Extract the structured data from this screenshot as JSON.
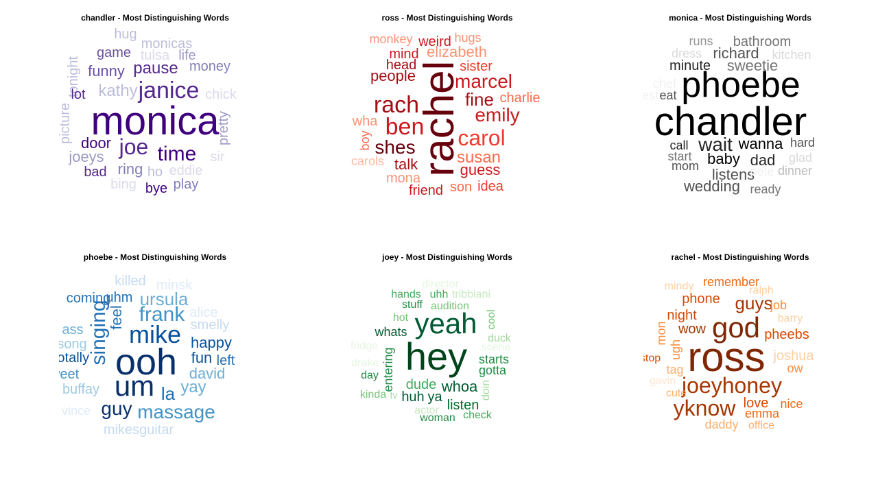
{
  "chart_data": [
    {
      "type": "wordcloud",
      "title": "chandler - Most Distinguishing Words",
      "palette": "purples",
      "words": [
        {
          "text": "hug",
          "size": 20,
          "color": "#bcbddc"
        },
        {
          "text": "monicas",
          "size": 20,
          "color": "#bcbddc"
        },
        {
          "text": "tonight",
          "size": 20,
          "color": "#bcbddc",
          "rot": 1
        },
        {
          "text": "game",
          "size": 20,
          "color": "#6a51a3"
        },
        {
          "text": "tulsa",
          "size": 20,
          "color": "#dadaeb"
        },
        {
          "text": "life",
          "size": 20,
          "color": "#9e9ac8"
        },
        {
          "text": "funny",
          "size": 22,
          "color": "#6a51a3"
        },
        {
          "text": "pause",
          "size": 24,
          "color": "#54278f"
        },
        {
          "text": "money",
          "size": 20,
          "color": "#807dba"
        },
        {
          "text": "lot",
          "size": 20,
          "color": "#54278f"
        },
        {
          "text": "kathy",
          "size": 24,
          "color": "#bcbddc"
        },
        {
          "text": "janice",
          "size": 34,
          "color": "#54278f"
        },
        {
          "text": "chick",
          "size": 20,
          "color": "#dadaeb"
        },
        {
          "text": "monica",
          "size": 58,
          "color": "#3f007d"
        },
        {
          "text": "picture",
          "size": 20,
          "color": "#bcbddc",
          "rot": 1
        },
        {
          "text": "pretty",
          "size": 20,
          "color": "#9e9ac8",
          "rot": 1
        },
        {
          "text": "door",
          "size": 22,
          "color": "#3f007d"
        },
        {
          "text": "joe",
          "size": 32,
          "color": "#54278f"
        },
        {
          "text": "time",
          "size": 30,
          "color": "#3f007d"
        },
        {
          "text": "joeys",
          "size": 22,
          "color": "#9e9ac8"
        },
        {
          "text": "sir",
          "size": 20,
          "color": "#dadaeb"
        },
        {
          "text": "bad",
          "size": 20,
          "color": "#54278f"
        },
        {
          "text": "ring",
          "size": 22,
          "color": "#807dba"
        },
        {
          "text": "ho",
          "size": 20,
          "color": "#bcbddc"
        },
        {
          "text": "eddie",
          "size": 20,
          "color": "#dadaeb"
        },
        {
          "text": "bing",
          "size": 20,
          "color": "#dadaeb"
        },
        {
          "text": "bye",
          "size": 20,
          "color": "#3f007d"
        },
        {
          "text": "play",
          "size": 20,
          "color": "#807dba"
        }
      ]
    },
    {
      "type": "wordcloud",
      "title": "ross - Most Distinguishing Words",
      "palette": "reds",
      "words": [
        {
          "text": "monkey",
          "size": 18,
          "color": "#fc9272"
        },
        {
          "text": "weird",
          "size": 20,
          "color": "#cb181d"
        },
        {
          "text": "hugs",
          "size": 18,
          "color": "#fc9272"
        },
        {
          "text": "mind",
          "size": 20,
          "color": "#cb181d"
        },
        {
          "text": "elizabeth",
          "size": 22,
          "color": "#fc9272"
        },
        {
          "text": "head",
          "size": 20,
          "color": "#a50f15"
        },
        {
          "text": "sister",
          "size": 20,
          "color": "#ef3b2c"
        },
        {
          "text": "people",
          "size": 22,
          "color": "#a50f15"
        },
        {
          "text": "rachel",
          "size": 62,
          "color": "#67000d",
          "rot": 1
        },
        {
          "text": "marcel",
          "size": 28,
          "color": "#cb181d"
        },
        {
          "text": "fine",
          "size": 26,
          "color": "#a50f15"
        },
        {
          "text": "charlie",
          "size": 20,
          "color": "#fb6a4a"
        },
        {
          "text": "rach",
          "size": 34,
          "color": "#a50f15"
        },
        {
          "text": "emily",
          "size": 28,
          "color": "#cb181d"
        },
        {
          "text": "wha",
          "size": 20,
          "color": "#fc9272"
        },
        {
          "text": "ben",
          "size": 34,
          "color": "#cb181d"
        },
        {
          "text": "boy",
          "size": 18,
          "color": "#fb6a4a",
          "rot": 1
        },
        {
          "text": "carol",
          "size": 32,
          "color": "#ef3b2c"
        },
        {
          "text": "shes",
          "size": 28,
          "color": "#67000d"
        },
        {
          "text": "carols",
          "size": 18,
          "color": "#fcbba1"
        },
        {
          "text": "susan",
          "size": 24,
          "color": "#fb6a4a"
        },
        {
          "text": "talk",
          "size": 22,
          "color": "#a50f15"
        },
        {
          "text": "guess",
          "size": 22,
          "color": "#cb181d"
        },
        {
          "text": "mona",
          "size": 20,
          "color": "#fc9272"
        },
        {
          "text": "son",
          "size": 20,
          "color": "#fb6a4a"
        },
        {
          "text": "idea",
          "size": 20,
          "color": "#ef3b2c"
        },
        {
          "text": "friend",
          "size": 20,
          "color": "#cb181d"
        }
      ]
    },
    {
      "type": "wordcloud",
      "title": "monica - Most Distinguishing Words",
      "palette": "greys",
      "words": [
        {
          "text": "runs",
          "size": 18,
          "color": "#969696"
        },
        {
          "text": "bathroom",
          "size": 20,
          "color": "#737373"
        },
        {
          "text": "dress",
          "size": 18,
          "color": "#d9d9d9"
        },
        {
          "text": "richard",
          "size": 22,
          "color": "#525252"
        },
        {
          "text": "kitchen",
          "size": 18,
          "color": "#d9d9d9"
        },
        {
          "text": "minute",
          "size": 20,
          "color": "#252525"
        },
        {
          "text": "sweetie",
          "size": 22,
          "color": "#737373"
        },
        {
          "text": "chef",
          "size": 18,
          "color": "#f0f0f0"
        },
        {
          "text": "phoebe",
          "size": 52,
          "color": "#000000"
        },
        {
          "text": "guest",
          "size": 18,
          "color": "#f0f0f0"
        },
        {
          "text": "eat",
          "size": 18,
          "color": "#525252"
        },
        {
          "text": "chandler",
          "size": 58,
          "color": "#000000"
        },
        {
          "text": "call",
          "size": 18,
          "color": "#252525"
        },
        {
          "text": "wait",
          "size": 28,
          "color": "#252525"
        },
        {
          "text": "wanna",
          "size": 22,
          "color": "#000000"
        },
        {
          "text": "hard",
          "size": 18,
          "color": "#525252"
        },
        {
          "text": "start",
          "size": 18,
          "color": "#737373"
        },
        {
          "text": "baby",
          "size": 22,
          "color": "#000000"
        },
        {
          "text": "dad",
          "size": 22,
          "color": "#252525"
        },
        {
          "text": "glad",
          "size": 18,
          "color": "#d9d9d9"
        },
        {
          "text": "mom",
          "size": 18,
          "color": "#525252"
        },
        {
          "text": "listens",
          "size": 22,
          "color": "#525252"
        },
        {
          "text": "pete",
          "size": 18,
          "color": "#f0f0f0"
        },
        {
          "text": "dinner",
          "size": 18,
          "color": "#bdbdbd"
        },
        {
          "text": "wedding",
          "size": 22,
          "color": "#525252"
        },
        {
          "text": "ready",
          "size": 18,
          "color": "#737373"
        }
      ]
    },
    {
      "type": "wordcloud",
      "title": "phoebe - Most Distinguishing Words",
      "palette": "blues",
      "words": [
        {
          "text": "killed",
          "size": 20,
          "color": "#c6dbef"
        },
        {
          "text": "minsk",
          "size": 20,
          "color": "#deebf7"
        },
        {
          "text": "coming",
          "size": 20,
          "color": "#2171b5"
        },
        {
          "text": "uhm",
          "size": 20,
          "color": "#2171b5"
        },
        {
          "text": "ursula",
          "size": 26,
          "color": "#6baed6"
        },
        {
          "text": "frank",
          "size": 30,
          "color": "#4292c6"
        },
        {
          "text": "alice",
          "size": 20,
          "color": "#deebf7"
        },
        {
          "text": "smelly",
          "size": 20,
          "color": "#c6dbef"
        },
        {
          "text": "feel",
          "size": 22,
          "color": "#2171b5",
          "rot": 1
        },
        {
          "text": "ass",
          "size": 20,
          "color": "#6baed6"
        },
        {
          "text": "singing",
          "size": 30,
          "color": "#2171b5",
          "rot": 1
        },
        {
          "text": "mike",
          "size": 36,
          "color": "#08519c"
        },
        {
          "text": "song",
          "size": 20,
          "color": "#9ecae1"
        },
        {
          "text": "happy",
          "size": 22,
          "color": "#08519c"
        },
        {
          "text": "totally",
          "size": 20,
          "color": "#08519c"
        },
        {
          "text": "ooh",
          "size": 54,
          "color": "#08306b"
        },
        {
          "text": "fun",
          "size": 22,
          "color": "#08519c"
        },
        {
          "text": "left",
          "size": 20,
          "color": "#2171b5"
        },
        {
          "text": "sweet",
          "size": 20,
          "color": "#4292c6"
        },
        {
          "text": "david",
          "size": 22,
          "color": "#6baed6"
        },
        {
          "text": "um",
          "size": 42,
          "color": "#08306b"
        },
        {
          "text": "buffay",
          "size": 20,
          "color": "#9ecae1"
        },
        {
          "text": "la",
          "size": 26,
          "color": "#2171b5"
        },
        {
          "text": "yay",
          "size": 24,
          "color": "#6baed6"
        },
        {
          "text": "vince",
          "size": 18,
          "color": "#deebf7"
        },
        {
          "text": "guy",
          "size": 28,
          "color": "#08306b"
        },
        {
          "text": "massage",
          "size": 28,
          "color": "#4292c6"
        },
        {
          "text": "mikesguitar",
          "size": 20,
          "color": "#c6dbef"
        }
      ]
    },
    {
      "type": "wordcloud",
      "title": "joey - Most Distinguishing Words",
      "palette": "greens",
      "words": [
        {
          "text": "director",
          "size": 16,
          "color": "#e5f5e0"
        },
        {
          "text": "hands",
          "size": 16,
          "color": "#41ab5d"
        },
        {
          "text": "uhh",
          "size": 16,
          "color": "#41ab5d"
        },
        {
          "text": "tribbiani",
          "size": 16,
          "color": "#c7e9c0"
        },
        {
          "text": "stuff",
          "size": 16,
          "color": "#238b45"
        },
        {
          "text": "audition",
          "size": 16,
          "color": "#74c476"
        },
        {
          "text": "cool",
          "size": 16,
          "color": "#74c476",
          "rot": 1
        },
        {
          "text": "hot",
          "size": 16,
          "color": "#74c476"
        },
        {
          "text": "yeah",
          "size": 42,
          "color": "#005a32"
        },
        {
          "text": "whats",
          "size": 18,
          "color": "#005a32"
        },
        {
          "text": "duck",
          "size": 16,
          "color": "#a1d99b"
        },
        {
          "text": "fridge",
          "size": 16,
          "color": "#e5f5e0"
        },
        {
          "text": "hey",
          "size": 56,
          "color": "#00441b"
        },
        {
          "text": "scene",
          "size": 16,
          "color": "#e5f5e0"
        },
        {
          "text": "drake",
          "size": 16,
          "color": "#e5f5e0"
        },
        {
          "text": "entering",
          "size": 18,
          "color": "#238b45",
          "rot": 1
        },
        {
          "text": "starts",
          "size": 18,
          "color": "#238b45"
        },
        {
          "text": "day",
          "size": 16,
          "color": "#238b45"
        },
        {
          "text": "gotta",
          "size": 18,
          "color": "#238b45"
        },
        {
          "text": "dude",
          "size": 20,
          "color": "#41ab5d"
        },
        {
          "text": "whoa",
          "size": 22,
          "color": "#005a32"
        },
        {
          "text": "doin",
          "size": 16,
          "color": "#a1d99b",
          "rot": 1
        },
        {
          "text": "kinda",
          "size": 16,
          "color": "#74c476"
        },
        {
          "text": "tv",
          "size": 14,
          "color": "#a1d99b"
        },
        {
          "text": "huh",
          "size": 20,
          "color": "#005a32"
        },
        {
          "text": "ya",
          "size": 20,
          "color": "#005a32"
        },
        {
          "text": "listen",
          "size": 20,
          "color": "#006d2c"
        },
        {
          "text": "actor",
          "size": 16,
          "color": "#c7e9c0"
        },
        {
          "text": "check",
          "size": 16,
          "color": "#41ab5d"
        },
        {
          "text": "woman",
          "size": 16,
          "color": "#238b45"
        }
      ]
    },
    {
      "type": "wordcloud",
      "title": "rachel - Most Distinguishing Words",
      "palette": "oranges",
      "words": [
        {
          "text": "mindy",
          "size": 16,
          "color": "#fdd0a2"
        },
        {
          "text": "remember",
          "size": 18,
          "color": "#f16913"
        },
        {
          "text": "ralph",
          "size": 16,
          "color": "#fdd0a2"
        },
        {
          "text": "phone",
          "size": 20,
          "color": "#d94801"
        },
        {
          "text": "guys",
          "size": 26,
          "color": "#a63603"
        },
        {
          "text": "job",
          "size": 18,
          "color": "#fd8d3c"
        },
        {
          "text": "night",
          "size": 20,
          "color": "#d94801"
        },
        {
          "text": "god",
          "size": 42,
          "color": "#7f2704"
        },
        {
          "text": "barry",
          "size": 16,
          "color": "#fdd0a2"
        },
        {
          "text": "mon",
          "size": 18,
          "color": "#fd8d3c",
          "rot": 1
        },
        {
          "text": "wow",
          "size": 20,
          "color": "#a63603"
        },
        {
          "text": "pheebs",
          "size": 20,
          "color": "#d94801"
        },
        {
          "text": "ugh",
          "size": 18,
          "color": "#fd8d3c",
          "rot": 1
        },
        {
          "text": "ross",
          "size": 60,
          "color": "#7f2704"
        },
        {
          "text": "joshua",
          "size": 20,
          "color": "#fdd0a2"
        },
        {
          "text": "stop",
          "size": 16,
          "color": "#d94801"
        },
        {
          "text": "tag",
          "size": 18,
          "color": "#fdae6b"
        },
        {
          "text": "ow",
          "size": 18,
          "color": "#fd8d3c"
        },
        {
          "text": "gavin",
          "size": 16,
          "color": "#fee6ce"
        },
        {
          "text": "joeyhoney",
          "size": 32,
          "color": "#a63603"
        },
        {
          "text": "cute",
          "size": 16,
          "color": "#fdae6b"
        },
        {
          "text": "yknow",
          "size": 32,
          "color": "#a63603"
        },
        {
          "text": "love",
          "size": 20,
          "color": "#d94801"
        },
        {
          "text": "nice",
          "size": 18,
          "color": "#f16913"
        },
        {
          "text": "emma",
          "size": 18,
          "color": "#f16913"
        },
        {
          "text": "daddy",
          "size": 18,
          "color": "#fdae6b"
        },
        {
          "text": "office",
          "size": 16,
          "color": "#fdae6b"
        }
      ]
    }
  ]
}
